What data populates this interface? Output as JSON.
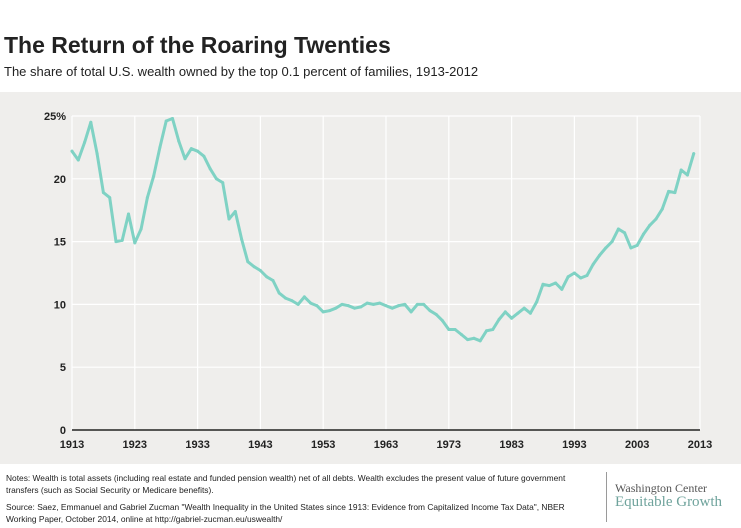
{
  "header": {
    "title": "The Return of the Roaring Twenties",
    "subtitle": "The share of total U.S. wealth owned by the top 0.1 percent of families, 1913-2012"
  },
  "colors": {
    "line": "#7fd2c4",
    "grid": "#ffffff",
    "background": "#efeeec",
    "axis": "#222222"
  },
  "chart_data": {
    "type": "line",
    "title": "The Return of the Roaring Twenties",
    "subtitle": "The share of total U.S. wealth owned by the top 0.1 percent of families, 1913-2012",
    "xlim": [
      1913,
      2013
    ],
    "ylim": [
      0,
      25
    ],
    "x_ticks": [
      1913,
      1923,
      1933,
      1943,
      1953,
      1963,
      1973,
      1983,
      1993,
      2003,
      2013
    ],
    "y_ticks": [
      0,
      5,
      10,
      15,
      20,
      25
    ],
    "y_tick_labels": [
      "0",
      "5",
      "10",
      "15",
      "20",
      "25%"
    ],
    "grid": "vertical and horizontal",
    "legend": "none",
    "series": [
      {
        "x": [
          1913,
          1914,
          1915,
          1916,
          1917,
          1918,
          1919,
          1920,
          1921,
          1922,
          1923,
          1924,
          1925,
          1926,
          1927,
          1928,
          1929,
          1930,
          1931,
          1932,
          1933,
          1934,
          1935,
          1936,
          1937,
          1938,
          1939,
          1940,
          1941,
          1942,
          1943,
          1944,
          1945,
          1946,
          1947,
          1948,
          1949,
          1950,
          1951,
          1952,
          1953,
          1954,
          1955,
          1956,
          1957,
          1958,
          1959,
          1960,
          1961,
          1962,
          1963,
          1964,
          1965,
          1966,
          1967,
          1968,
          1969,
          1970,
          1971,
          1972,
          1973,
          1974,
          1975,
          1976,
          1977,
          1978,
          1979,
          1980,
          1981,
          1982,
          1983,
          1984,
          1985,
          1986,
          1987,
          1988,
          1989,
          1990,
          1991,
          1992,
          1993,
          1994,
          1995,
          1996,
          1997,
          1998,
          1999,
          2000,
          2001,
          2002,
          2003,
          2004,
          2005,
          2006,
          2007,
          2008,
          2009,
          2010,
          2011,
          2012
        ],
        "values": [
          22.2,
          21.5,
          22.9,
          24.5,
          22.0,
          18.9,
          18.5,
          15.0,
          15.1,
          17.2,
          14.9,
          16.0,
          18.5,
          20.2,
          22.5,
          24.6,
          24.8,
          23.0,
          21.6,
          22.4,
          22.2,
          21.8,
          20.8,
          20.0,
          19.7,
          16.8,
          17.4,
          15.2,
          13.4,
          13.0,
          12.7,
          12.2,
          11.9,
          10.9,
          10.5,
          10.3,
          10.0,
          10.6,
          10.1,
          9.9,
          9.4,
          9.5,
          9.7,
          10.0,
          9.9,
          9.7,
          9.8,
          10.1,
          10.0,
          10.1,
          9.9,
          9.7,
          9.9,
          10.0,
          9.4,
          10.0,
          10.0,
          9.5,
          9.2,
          8.7,
          8.0,
          8.0,
          7.6,
          7.2,
          7.3,
          7.1,
          7.9,
          8.0,
          8.8,
          9.4,
          8.9,
          9.3,
          9.7,
          9.3,
          10.2,
          11.6,
          11.5,
          11.7,
          11.2,
          12.2,
          12.5,
          12.1,
          12.3,
          13.2,
          13.9,
          14.5,
          15.0,
          16.0,
          15.7,
          14.5,
          14.7,
          15.6,
          16.3,
          16.8,
          17.6,
          19.0,
          18.9,
          20.7,
          20.3,
          22.0
        ]
      }
    ]
  },
  "footer": {
    "notes": "Notes: Wealth is total assets (including real estate and funded pension wealth) net of all debts. Wealth excludes the present value of future government transfers (such as Social Security or Medicare benefits).",
    "source": "Source: Saez, Emmanuel and Gabriel Zucman \"Wealth Inequality in the United States since 1913: Evidence from Capitalized Income Tax Data\", NBER Working Paper, October 2014, online at http://gabriel-zucman.eu/uswealth/"
  },
  "logo": {
    "line1": "Washington Center",
    "line2": "Equitable Growth"
  }
}
